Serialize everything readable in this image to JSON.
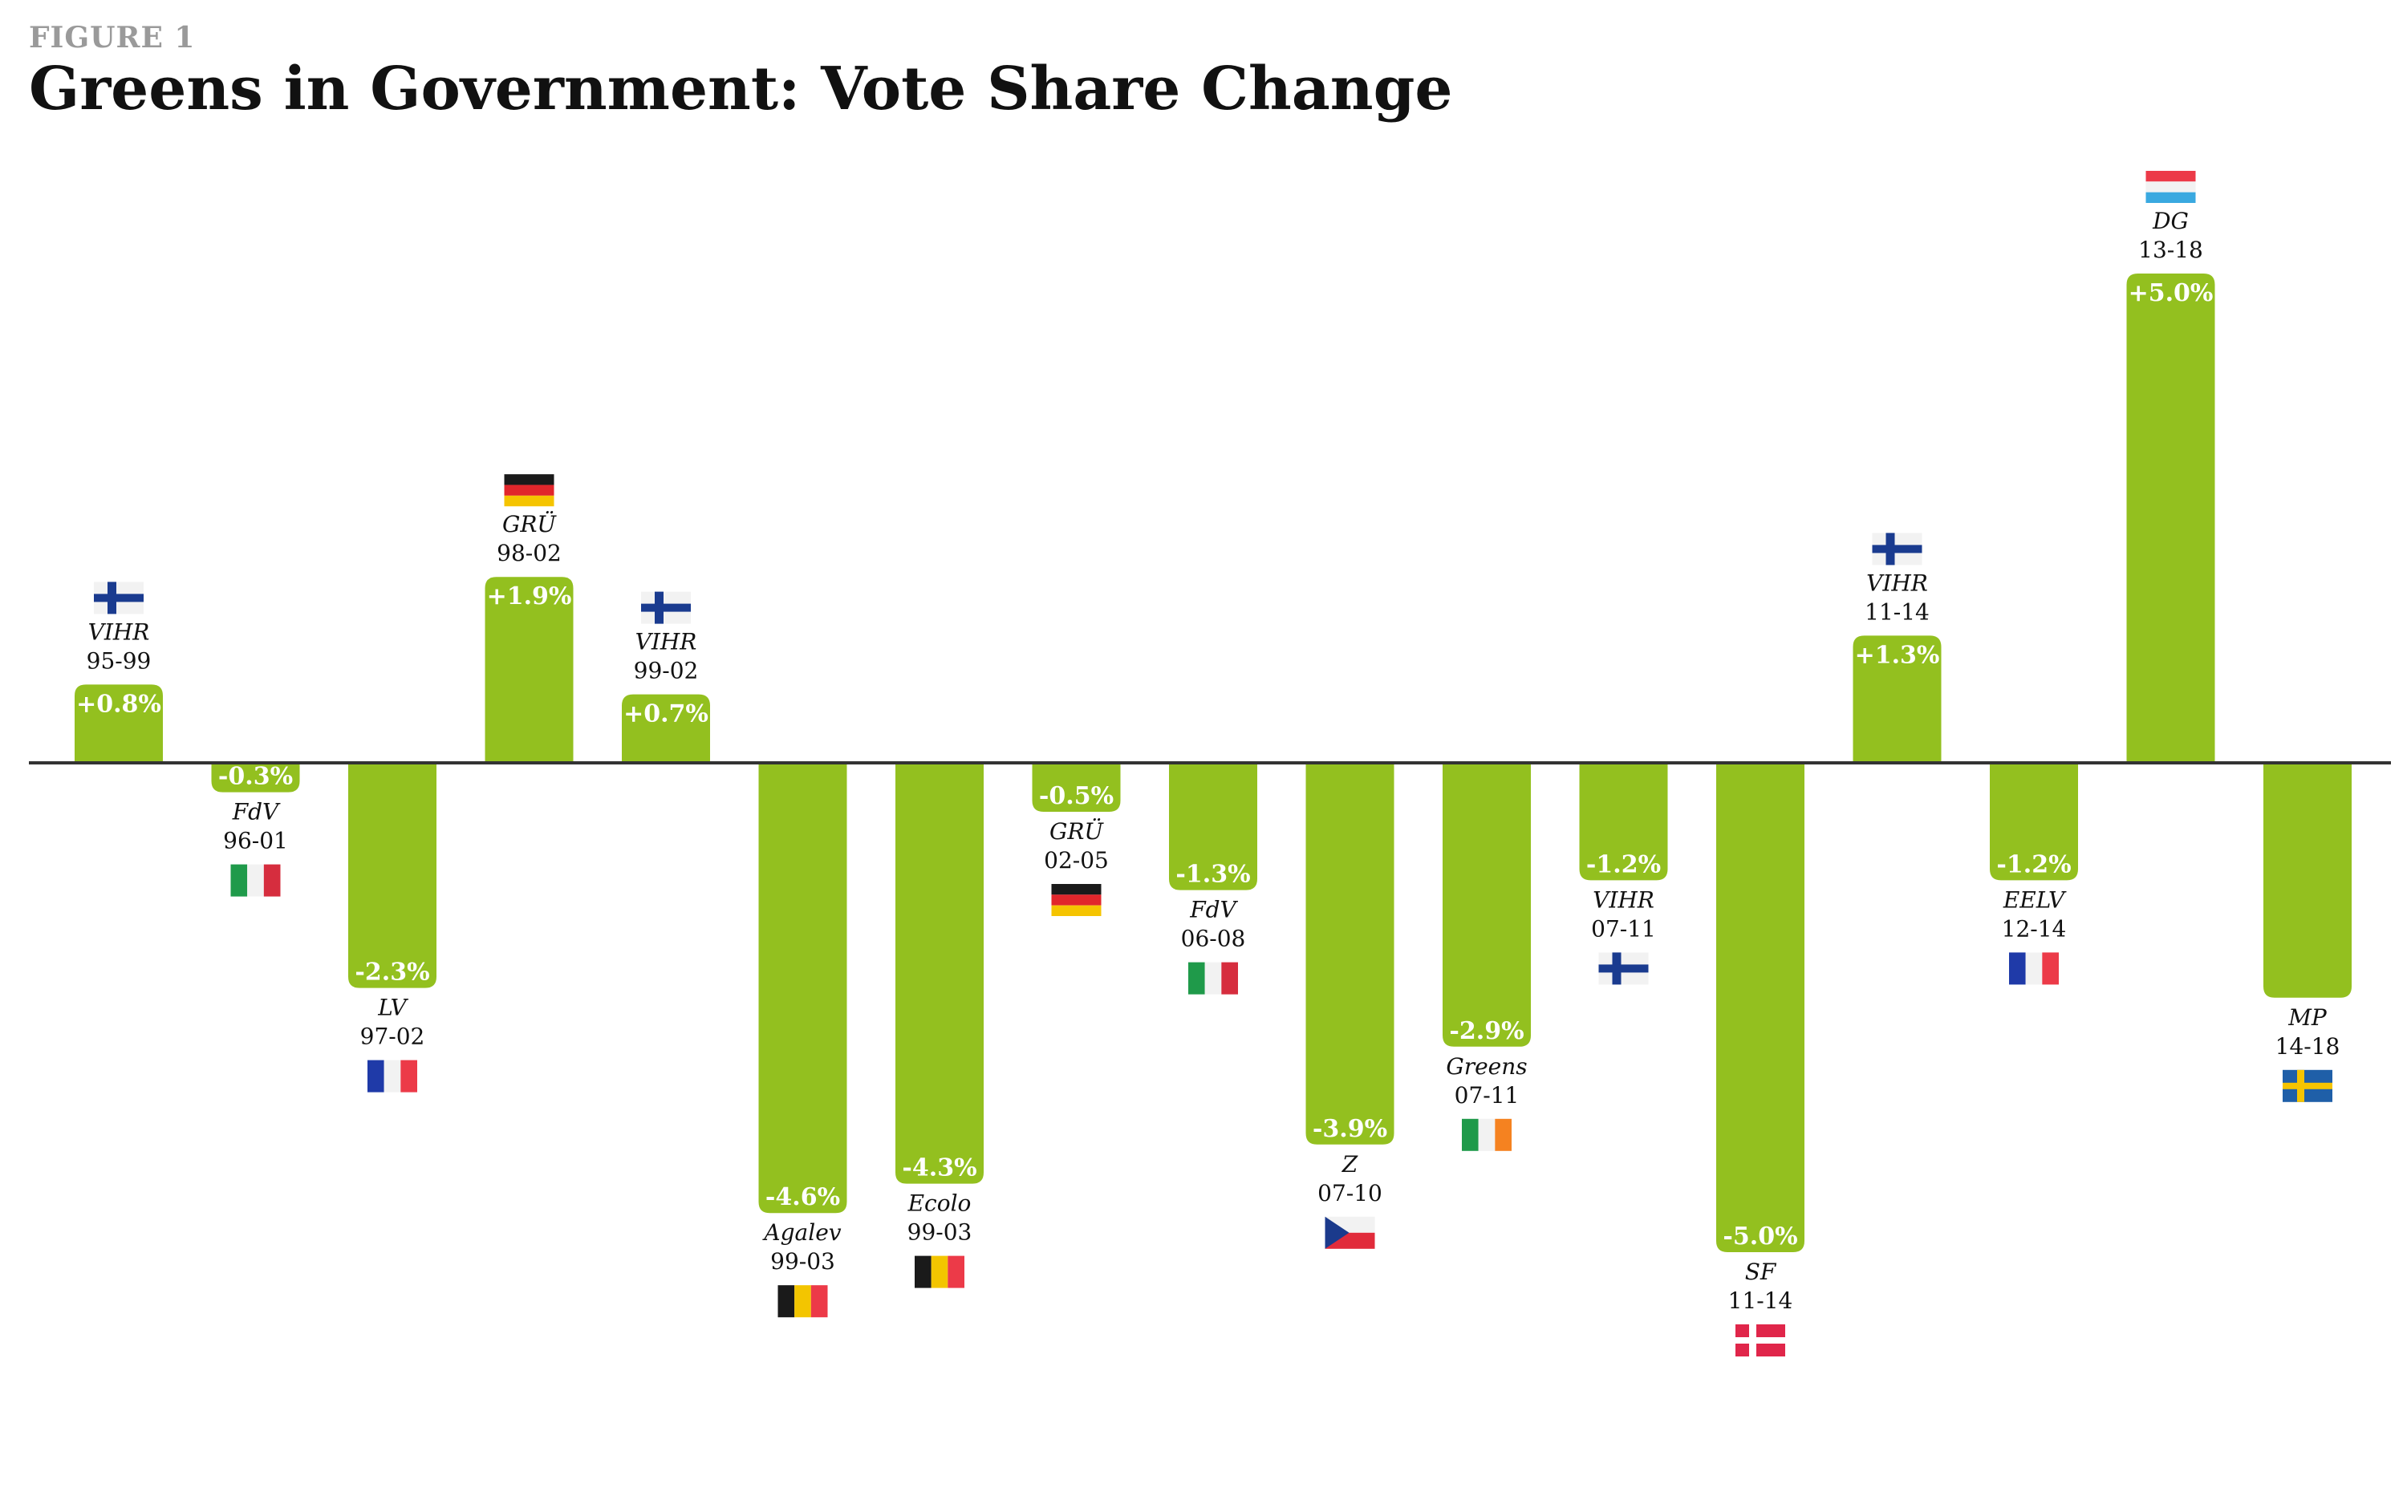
{
  "figure": {
    "label": "FIGURE 1",
    "title": "Greens in Government: Vote Share Change"
  },
  "colors": {
    "bar": "#93c01f",
    "axis": "#333333",
    "text": "#111111"
  },
  "chart_data": {
    "type": "bar",
    "title": "Greens in Government: Vote Share Change",
    "unit": "%",
    "categories": [
      "VIHR 95-99",
      "FdV 96-01",
      "LV 97-02",
      "GRÜ 98-02",
      "VIHR 99-02",
      "Agalev 99-03",
      "Ecolo 99-03",
      "GRÜ 02-05",
      "FdV 06-08",
      "Z 07-10",
      "Greens 07-11",
      "VIHR 07-11",
      "SF 11-14",
      "VIHR 11-14",
      "EELV 12-14",
      "DG 13-18",
      "MP 14-18"
    ],
    "bars": [
      {
        "party": "VIHR",
        "years": "95-99",
        "value": 0.8,
        "label": "+0.8%",
        "country": "Finland"
      },
      {
        "party": "FdV",
        "years": "96-01",
        "value": -0.3,
        "label": "-0.3%",
        "country": "Italy"
      },
      {
        "party": "LV",
        "years": "97-02",
        "value": -2.3,
        "label": "-2.3%",
        "country": "France"
      },
      {
        "party": "GRÜ",
        "years": "98-02",
        "value": 1.9,
        "label": "+1.9%",
        "country": "Germany"
      },
      {
        "party": "VIHR",
        "years": "99-02",
        "value": 0.7,
        "label": "+0.7%",
        "country": "Finland"
      },
      {
        "party": "Agalev",
        "years": "99-03",
        "value": -4.6,
        "label": "-4.6%",
        "country": "Belgium"
      },
      {
        "party": "Ecolo",
        "years": "99-03",
        "value": -4.3,
        "label": "-4.3%",
        "country": "Belgium"
      },
      {
        "party": "GRÜ",
        "years": "02-05",
        "value": -0.5,
        "label": "-0.5%",
        "country": "Germany"
      },
      {
        "party": "FdV",
        "years": "06-08",
        "value": -1.3,
        "label": "-1.3%",
        "country": "Italy"
      },
      {
        "party": "Z",
        "years": "07-10",
        "value": -3.9,
        "label": "-3.9%",
        "country": "Czech Republic"
      },
      {
        "party": "Greens",
        "years": "07-11",
        "value": -2.9,
        "label": "-2.9%",
        "country": "Ireland"
      },
      {
        "party": "VIHR",
        "years": "07-11",
        "value": -1.2,
        "label": "-1.2%",
        "country": "Finland"
      },
      {
        "party": "SF",
        "years": "11-14",
        "value": -5.0,
        "label": "-5.0%",
        "country": "Denmark"
      },
      {
        "party": "VIHR",
        "years": "11-14",
        "value": 1.3,
        "label": "+1.3%",
        "country": "Finland"
      },
      {
        "party": "EELV",
        "years": "12-14",
        "value": -1.2,
        "label": "-1.2%",
        "country": "France"
      },
      {
        "party": "DG",
        "years": "13-18",
        "value": 5.0,
        "label": "+5.0%",
        "country": "Luxembourg"
      },
      {
        "party": "MP",
        "years": "14-18",
        "value": -2.4,
        "label": "",
        "country": "Sweden"
      }
    ]
  }
}
